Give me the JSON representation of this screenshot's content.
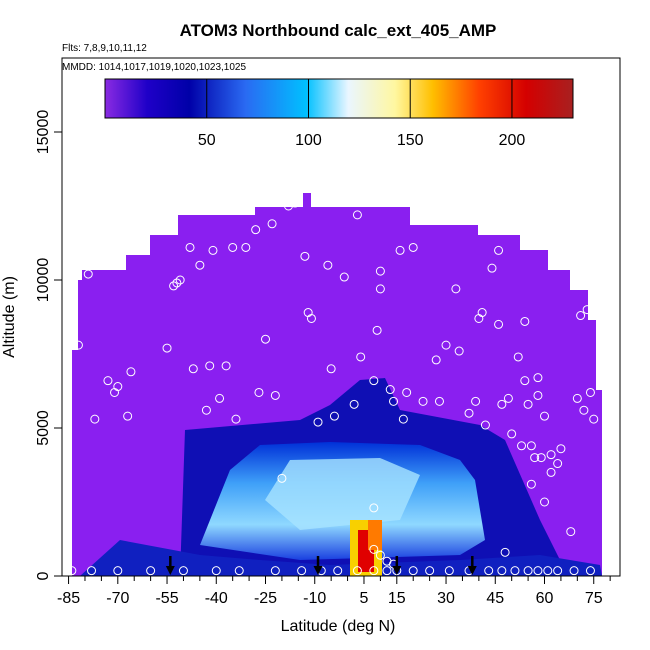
{
  "chart_data": {
    "type": "heatmap",
    "title": "ATOM3 Northbound calc_ext_405_AMP",
    "subtitle_flights": "Flts: 7,8,9,10,11,12",
    "subtitle_dates": "MMDD: 1014,1017,1019,1020,1023,1025",
    "xlabel": "Latitude (deg N)",
    "ylabel": "Altitude (m)",
    "xlim": [
      -87,
      83
    ],
    "ylim": [
      0,
      17500
    ],
    "x_ticks": [
      -85,
      -70,
      -55,
      -40,
      -25,
      -10,
      5,
      15,
      30,
      45,
      60,
      75
    ],
    "x_tick_labels": [
      "-85",
      "-70",
      "-55",
      "-40",
      "-25",
      "-10",
      "5",
      "15",
      "30",
      "45",
      "60",
      "75"
    ],
    "x_minor_ticks": [
      -80,
      -75,
      -65,
      -60,
      -50,
      -45,
      -35,
      -30,
      -20,
      -15,
      -5,
      0,
      10,
      20,
      25,
      35,
      40,
      50,
      55,
      65,
      70,
      80
    ],
    "y_ticks": [
      0,
      5000,
      10000,
      15000
    ],
    "y_tick_labels": [
      "0",
      "5000",
      "10000",
      "15000"
    ],
    "colorbar": {
      "range": [
        0,
        230
      ],
      "ticks": [
        50,
        100,
        150,
        200
      ],
      "tick_labels": [
        "50",
        "100",
        "150",
        "200"
      ]
    },
    "arrows_latitude": [
      -54,
      -9,
      15,
      38
    ],
    "profile_points": [
      [
        -82,
        7800
      ],
      [
        -79,
        10200
      ],
      [
        -77,
        5300
      ],
      [
        -75,
        10500
      ],
      [
        -73,
        6600
      ],
      [
        -72,
        10500
      ],
      [
        -71,
        6200
      ],
      [
        -70,
        6400
      ],
      [
        -67,
        5400
      ],
      [
        -66,
        6900
      ],
      [
        -60,
        11800
      ],
      [
        -55,
        7700
      ],
      [
        -53,
        9800
      ],
      [
        -52,
        9900
      ],
      [
        -51,
        10000
      ],
      [
        -48,
        11100
      ],
      [
        -47,
        7000
      ],
      [
        -45,
        10500
      ],
      [
        -43,
        5600
      ],
      [
        -42,
        7100
      ],
      [
        -41,
        11000
      ],
      [
        -39,
        6000
      ],
      [
        -37,
        7100
      ],
      [
        -35,
        11100
      ],
      [
        -34,
        5300
      ],
      [
        -31,
        11100
      ],
      [
        -28,
        11700
      ],
      [
        -27,
        6200
      ],
      [
        -25,
        8000
      ],
      [
        -23,
        11900
      ],
      [
        -22,
        6100
      ],
      [
        -18,
        12500
      ],
      [
        -16,
        12600
      ],
      [
        -14,
        13200
      ],
      [
        -13,
        10800
      ],
      [
        -12,
        8900
      ],
      [
        -11,
        8700
      ],
      [
        -9,
        5200
      ],
      [
        -6,
        10500
      ],
      [
        -5,
        7000
      ],
      [
        -4,
        5400
      ],
      [
        -1,
        10100
      ],
      [
        2,
        5800
      ],
      [
        3,
        12200
      ],
      [
        4,
        7400
      ],
      [
        8,
        6600
      ],
      [
        9,
        8300
      ],
      [
        10,
        9700
      ],
      [
        10,
        10300
      ],
      [
        11,
        12900
      ],
      [
        13,
        6300
      ],
      [
        14,
        5900
      ],
      [
        16,
        11000
      ],
      [
        17,
        5300
      ],
      [
        18,
        6200
      ],
      [
        20,
        11100
      ],
      [
        23,
        5900
      ],
      [
        27,
        7300
      ],
      [
        28,
        5900
      ],
      [
        30,
        7800
      ],
      [
        33,
        12300
      ],
      [
        33,
        9700
      ],
      [
        34,
        7600
      ],
      [
        37,
        5500
      ],
      [
        39,
        5900
      ],
      [
        40,
        8700
      ],
      [
        41,
        8900
      ],
      [
        42,
        5100
      ],
      [
        44,
        10400
      ],
      [
        46,
        11000
      ],
      [
        46,
        8500
      ],
      [
        47,
        5800
      ],
      [
        49,
        6000
      ],
      [
        50,
        4800
      ],
      [
        51,
        12100
      ],
      [
        52,
        7400
      ],
      [
        53,
        4400
      ],
      [
        54,
        6600
      ],
      [
        54,
        8600
      ],
      [
        55,
        5800
      ],
      [
        56,
        3100
      ],
      [
        56,
        4400
      ],
      [
        57,
        4000
      ],
      [
        58,
        6100
      ],
      [
        58,
        6700
      ],
      [
        59,
        4000
      ],
      [
        60,
        2500
      ],
      [
        60,
        5400
      ],
      [
        62,
        3500
      ],
      [
        62,
        4100
      ],
      [
        64,
        3800
      ],
      [
        65,
        4300
      ],
      [
        68,
        1500
      ],
      [
        70,
        6000
      ],
      [
        71,
        8800
      ],
      [
        72,
        5600
      ],
      [
        73,
        9000
      ],
      [
        74,
        6200
      ],
      [
        75,
        5300
      ],
      [
        -20,
        3300
      ],
      [
        8,
        2300
      ],
      [
        8,
        900
      ],
      [
        10,
        700
      ],
      [
        12,
        500
      ],
      [
        14,
        400
      ],
      [
        48,
        800
      ]
    ],
    "surface_points": [
      -84,
      -78,
      -70,
      -60,
      -50,
      -40,
      -33,
      -22,
      -14,
      -8,
      -3,
      3,
      8,
      12,
      15,
      20,
      25,
      31,
      37,
      43,
      47,
      51,
      55,
      58,
      61,
      64,
      69,
      74
    ]
  }
}
